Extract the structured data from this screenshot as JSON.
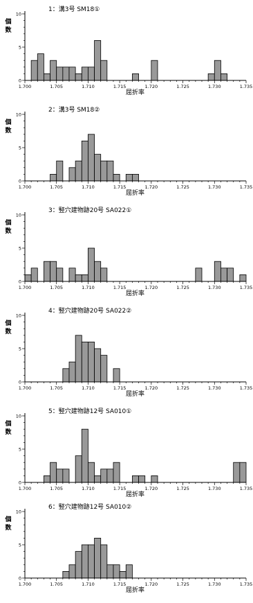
{
  "chart_data": [
    {
      "type": "bar",
      "title": "1：溝3号 SM18①",
      "xlabel": "屈折率",
      "ylabel": "個数",
      "xlim": [
        1.7,
        1.735
      ],
      "ylim": [
        0,
        10
      ],
      "x_ticks": [
        "1.700",
        "1.705",
        "1.710",
        "1.715",
        "1.720",
        "1.725",
        "1.730",
        "1.735"
      ],
      "y_ticks": [
        "0",
        "5",
        "10"
      ],
      "bin_width": 0.001,
      "bin_starts": [
        1.701,
        1.702,
        1.703,
        1.704,
        1.705,
        1.706,
        1.707,
        1.708,
        1.709,
        1.71,
        1.711,
        1.712,
        1.717,
        1.72,
        1.729,
        1.73,
        1.731
      ],
      "values": [
        3,
        4,
        1,
        3,
        2,
        2,
        2,
        1,
        2,
        2,
        6,
        3,
        1,
        3,
        1,
        3,
        1
      ]
    },
    {
      "type": "bar",
      "title": "2：溝3号 SM18②",
      "xlabel": "屈折率",
      "ylabel": "個数",
      "xlim": [
        1.7,
        1.735
      ],
      "ylim": [
        0,
        10
      ],
      "x_ticks": [
        "1.700",
        "1.705",
        "1.710",
        "1.715",
        "1.720",
        "1.725",
        "1.730",
        "1.735"
      ],
      "y_ticks": [
        "0",
        "5",
        "10"
      ],
      "bin_width": 0.001,
      "bin_starts": [
        1.704,
        1.705,
        1.707,
        1.708,
        1.709,
        1.71,
        1.711,
        1.712,
        1.713,
        1.714,
        1.716,
        1.717
      ],
      "values": [
        1,
        3,
        2,
        3,
        6,
        7,
        4,
        3,
        3,
        1,
        1,
        1
      ]
    },
    {
      "type": "bar",
      "title": "3：竪穴建物跡20号 SA022①",
      "xlabel": "屈折率",
      "ylabel": "個数",
      "xlim": [
        1.7,
        1.735
      ],
      "ylim": [
        0,
        10
      ],
      "x_ticks": [
        "1.700",
        "1.705",
        "1.710",
        "1.715",
        "1.720",
        "1.725",
        "1.730",
        "1.735"
      ],
      "y_ticks": [
        "0",
        "5",
        "10"
      ],
      "bin_width": 0.001,
      "bin_starts": [
        1.7,
        1.701,
        1.703,
        1.704,
        1.705,
        1.707,
        1.708,
        1.709,
        1.71,
        1.711,
        1.712,
        1.727,
        1.73,
        1.731,
        1.732,
        1.734
      ],
      "values": [
        1,
        2,
        3,
        3,
        2,
        2,
        1,
        1,
        5,
        3,
        2,
        2,
        3,
        2,
        2,
        1
      ]
    },
    {
      "type": "bar",
      "title": "4：竪穴建物跡20号 SA022②",
      "xlabel": "屈折率",
      "ylabel": "個数",
      "xlim": [
        1.7,
        1.735
      ],
      "ylim": [
        0,
        10
      ],
      "x_ticks": [
        "1.700",
        "1.705",
        "1.710",
        "1.715",
        "1.720",
        "1.725",
        "1.730",
        "1.735"
      ],
      "y_ticks": [
        "0",
        "5",
        "10"
      ],
      "bin_width": 0.001,
      "bin_starts": [
        1.706,
        1.707,
        1.708,
        1.709,
        1.71,
        1.711,
        1.712,
        1.714
      ],
      "values": [
        2,
        3,
        7,
        6,
        6,
        5,
        4,
        2
      ]
    },
    {
      "type": "bar",
      "title": "5：竪穴建物跡12号 SA010①",
      "xlabel": "屈折率",
      "ylabel": "個数",
      "xlim": [
        1.7,
        1.735
      ],
      "ylim": [
        0,
        10
      ],
      "x_ticks": [
        "1.700",
        "1.705",
        "1.710",
        "1.715",
        "1.720",
        "1.725",
        "1.730",
        "1.735"
      ],
      "y_ticks": [
        "0",
        "5",
        "10"
      ],
      "bin_width": 0.001,
      "bin_starts": [
        1.703,
        1.704,
        1.705,
        1.706,
        1.708,
        1.709,
        1.71,
        1.711,
        1.712,
        1.713,
        1.714,
        1.717,
        1.718,
        1.72,
        1.733,
        1.734
      ],
      "values": [
        1,
        3,
        2,
        2,
        4,
        8,
        3,
        1,
        2,
        2,
        3,
        1,
        1,
        1,
        3,
        3
      ]
    },
    {
      "type": "bar",
      "title": "6：竪穴建物跡12号 SA010②",
      "xlabel": "屈折率",
      "ylabel": "個数",
      "xlim": [
        1.7,
        1.735
      ],
      "ylim": [
        0,
        10
      ],
      "x_ticks": [
        "1.700",
        "1.705",
        "1.710",
        "1.715",
        "1.720",
        "1.725",
        "1.730",
        "1.735"
      ],
      "y_ticks": [
        "0",
        "5",
        "10"
      ],
      "bin_width": 0.001,
      "bin_starts": [
        1.706,
        1.707,
        1.708,
        1.709,
        1.71,
        1.711,
        1.712,
        1.713,
        1.714,
        1.715,
        1.716
      ],
      "values": [
        1,
        2,
        4,
        5,
        5,
        6,
        5,
        2,
        2,
        1,
        2
      ]
    }
  ],
  "colors": {
    "bar_fill": "#999999",
    "bar_stroke": "#000000",
    "axis": "#000000"
  }
}
